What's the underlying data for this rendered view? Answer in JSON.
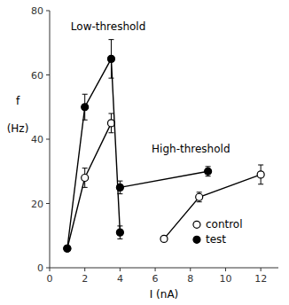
{
  "chart_data": {
    "type": "line",
    "xlabel": "I  (nA)",
    "ylabel": [
      "f",
      "(Hz)"
    ],
    "color": "black",
    "grid": false,
    "legend": "lower right",
    "xlim": [
      0,
      13
    ],
    "ylim": [
      0,
      80
    ],
    "xticks": [
      0,
      2,
      4,
      6,
      8,
      10,
      12
    ],
    "yticks": [
      0,
      20,
      40,
      60,
      80
    ],
    "series": [
      {
        "name": "control",
        "marker": "open",
        "x": [
          1,
          2,
          3.5
        ],
        "values": [
          6,
          28,
          45
        ],
        "yerr": [
          0,
          3,
          3
        ]
      },
      {
        "name": "test",
        "marker": "filled",
        "x": [
          1,
          2,
          3.5,
          4.0
        ],
        "values": [
          6,
          50,
          65,
          11
        ],
        "yerr": [
          0,
          4,
          6,
          2
        ]
      },
      {
        "marker": "open",
        "x": [
          6.5,
          8.5,
          12
        ],
        "values": [
          9,
          22,
          29
        ],
        "yerr": [
          0,
          1.5,
          3
        ]
      },
      {
        "marker": "filled",
        "x": [
          4.0,
          9.0
        ],
        "values": [
          25,
          30
        ],
        "yerr": [
          2,
          1.5
        ]
      }
    ],
    "annotations": [
      {
        "text": "Low-threshold",
        "x": 1.2,
        "y": 74
      },
      {
        "text": "High-threshold",
        "x": 5.8,
        "y": 36
      }
    ]
  }
}
